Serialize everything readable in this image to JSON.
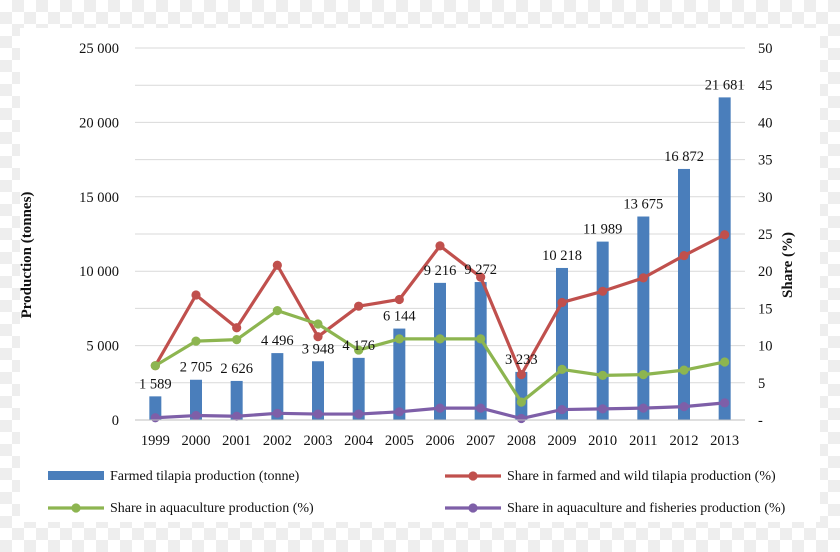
{
  "chart_data": {
    "type": "bar",
    "categories": [
      "1999",
      "2000",
      "2001",
      "2002",
      "2003",
      "2004",
      "2005",
      "2006",
      "2007",
      "2008",
      "2009",
      "2010",
      "2011",
      "2012",
      "2013"
    ],
    "ylabel": "Production (tonnes)",
    "y2label": "Share (%)",
    "ylim": [
      0,
      25000
    ],
    "y2lim": [
      0,
      50
    ],
    "yticks": [
      "0",
      "5 000",
      "10 000",
      "15 000",
      "20 000",
      "25 000"
    ],
    "y2ticks": [
      "-",
      "5",
      "10",
      "15",
      "20",
      "25",
      "30",
      "35",
      "40",
      "45",
      "50"
    ],
    "grid": true,
    "legend_position": "bottom",
    "series": [
      {
        "name": "Farmed tilapia production (tonne)",
        "type": "bar",
        "axis": "left",
        "color": "#4a7ebb",
        "values": [
          1589,
          2705,
          2626,
          4496,
          3948,
          4176,
          6144,
          9216,
          9272,
          3233,
          10218,
          11989,
          13675,
          16872,
          21681
        ],
        "labels": [
          "1 589",
          "2 705",
          "2 626",
          "4 496",
          "3 948",
          "4 176",
          "6 144",
          "9 216",
          "9 272",
          "3 233",
          "10 218",
          "11 989",
          "13 675",
          "16 872",
          "21 681"
        ]
      },
      {
        "name": "Share in farmed and wild tilapia production (%)",
        "type": "line",
        "axis": "right",
        "color": "#c0504d",
        "values": [
          7.3,
          16.8,
          12.4,
          20.8,
          11.2,
          15.3,
          16.2,
          23.4,
          19.2,
          6.1,
          15.8,
          17.3,
          19.1,
          22.1,
          24.9
        ]
      },
      {
        "name": "Share in aquaculture production (%)",
        "type": "line",
        "axis": "right",
        "color": "#8db550",
        "values": [
          7.3,
          10.6,
          10.8,
          14.7,
          12.9,
          9.4,
          10.9,
          10.9,
          10.9,
          2.4,
          6.8,
          6.0,
          6.1,
          6.7,
          7.8
        ]
      },
      {
        "name": "Share in aquaculture and fisheries production (%)",
        "type": "line",
        "axis": "right",
        "color": "#7e5fa8",
        "values": [
          0.3,
          0.6,
          0.5,
          0.9,
          0.8,
          0.8,
          1.1,
          1.6,
          1.6,
          0.2,
          1.4,
          1.5,
          1.6,
          1.8,
          2.3
        ]
      }
    ]
  }
}
